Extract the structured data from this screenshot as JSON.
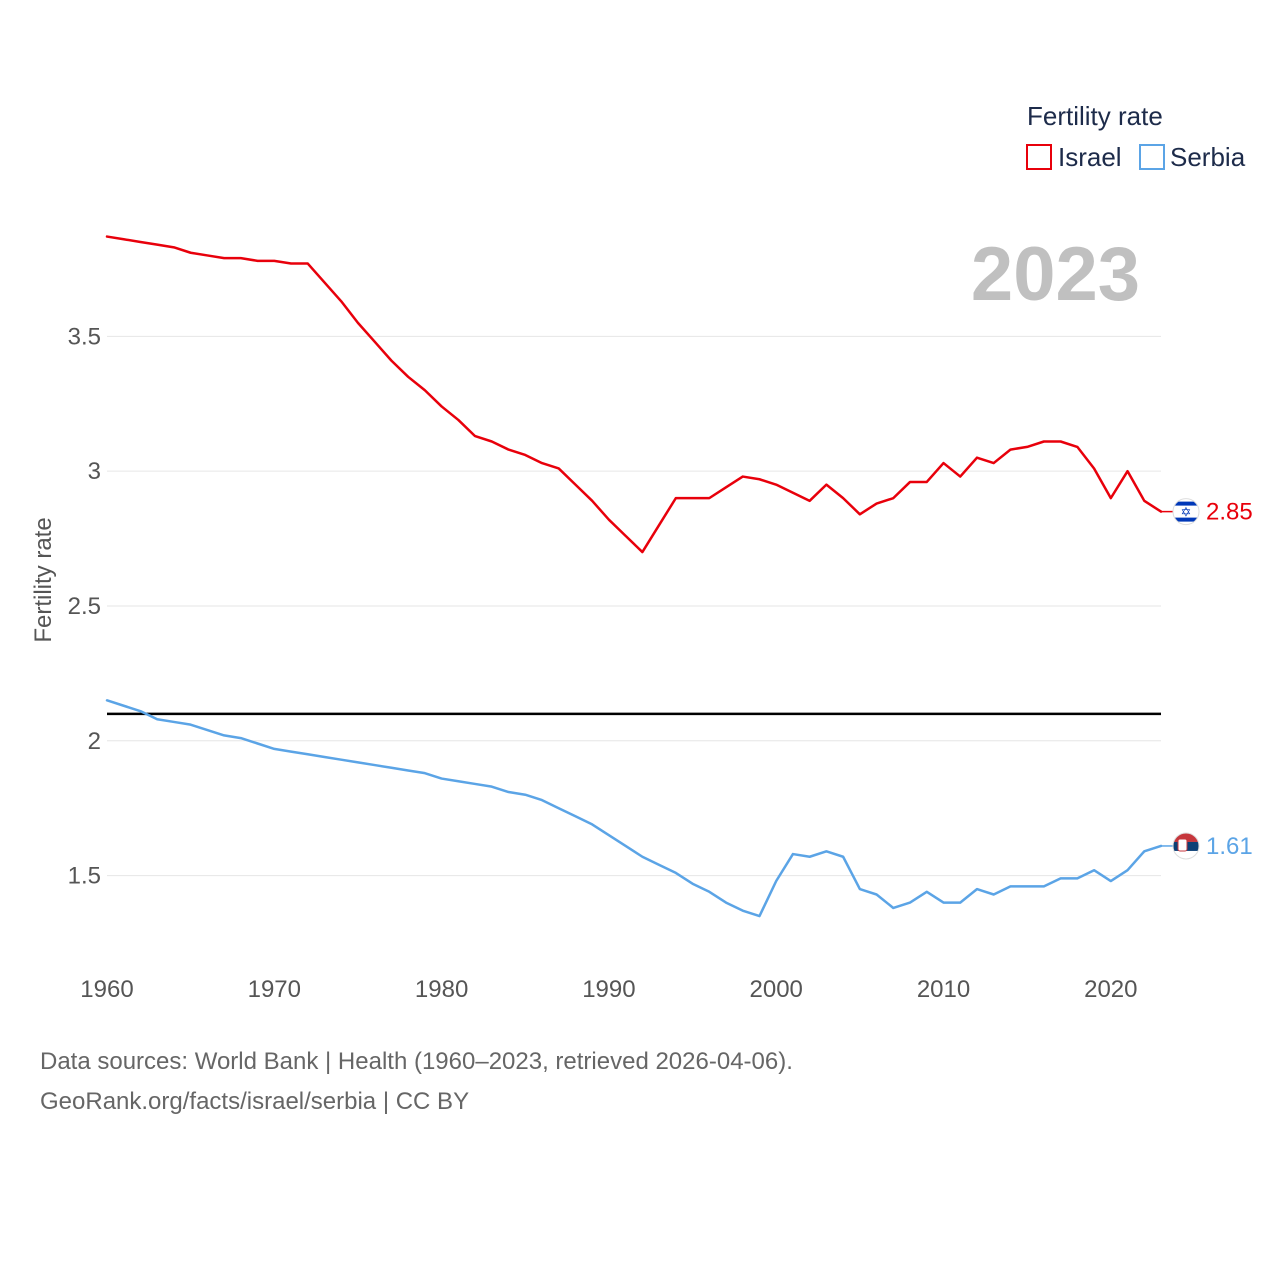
{
  "chart_data": {
    "type": "line",
    "title": "",
    "big_year_label": "2023",
    "ylabel": "Fertility rate",
    "xlabel": "",
    "xlim": [
      1960,
      2023
    ],
    "ylim": [
      1.15,
      3.95
    ],
    "yticks": [
      1.5,
      2,
      2.5,
      3,
      3.5
    ],
    "ytick_labels": [
      "1.5",
      "2",
      "2.5",
      "3",
      "3.5"
    ],
    "xticks": [
      1960,
      1970,
      1980,
      1990,
      2000,
      2010,
      2020
    ],
    "xtick_labels": [
      "1960",
      "1970",
      "1980",
      "1990",
      "2000",
      "2010",
      "2020"
    ],
    "reference_line": {
      "value": 2.1,
      "color": "#000000"
    },
    "legend": {
      "title": "Fertility rate",
      "position": "top-right"
    },
    "x": [
      1960,
      1961,
      1962,
      1963,
      1964,
      1965,
      1966,
      1967,
      1968,
      1969,
      1970,
      1971,
      1972,
      1973,
      1974,
      1975,
      1976,
      1977,
      1978,
      1979,
      1980,
      1981,
      1982,
      1983,
      1984,
      1985,
      1986,
      1987,
      1988,
      1989,
      1990,
      1991,
      1992,
      1993,
      1994,
      1995,
      1996,
      1997,
      1998,
      1999,
      2000,
      2001,
      2002,
      2003,
      2004,
      2005,
      2006,
      2007,
      2008,
      2009,
      2010,
      2011,
      2012,
      2013,
      2014,
      2015,
      2016,
      2017,
      2018,
      2019,
      2020,
      2021,
      2022,
      2023
    ],
    "series": [
      {
        "name": "Israel",
        "color": "#e8000b",
        "end_label": "2.85",
        "values": [
          3.87,
          3.86,
          3.85,
          3.84,
          3.83,
          3.81,
          3.8,
          3.79,
          3.79,
          3.78,
          3.78,
          3.77,
          3.77,
          3.7,
          3.63,
          3.55,
          3.48,
          3.41,
          3.35,
          3.3,
          3.24,
          3.19,
          3.13,
          3.11,
          3.08,
          3.06,
          3.03,
          3.01,
          2.95,
          2.89,
          2.82,
          2.76,
          2.7,
          2.8,
          2.9,
          2.9,
          2.9,
          2.94,
          2.98,
          2.97,
          2.95,
          2.92,
          2.89,
          2.95,
          2.9,
          2.84,
          2.88,
          2.9,
          2.96,
          2.96,
          3.03,
          2.98,
          3.05,
          3.03,
          3.08,
          3.09,
          3.11,
          3.11,
          3.09,
          3.01,
          2.9,
          3.0,
          2.89,
          2.85
        ]
      },
      {
        "name": "Serbia",
        "color": "#5ba4e6",
        "end_label": "1.61",
        "values": [
          2.15,
          2.13,
          2.11,
          2.08,
          2.07,
          2.06,
          2.04,
          2.02,
          2.01,
          1.99,
          1.97,
          1.96,
          1.95,
          1.94,
          1.93,
          1.92,
          1.91,
          1.9,
          1.89,
          1.88,
          1.86,
          1.85,
          1.84,
          1.83,
          1.81,
          1.8,
          1.78,
          1.75,
          1.72,
          1.69,
          1.65,
          1.61,
          1.57,
          1.54,
          1.51,
          1.47,
          1.44,
          1.4,
          1.37,
          1.35,
          1.48,
          1.58,
          1.57,
          1.59,
          1.57,
          1.45,
          1.43,
          1.38,
          1.4,
          1.44,
          1.4,
          1.4,
          1.45,
          1.43,
          1.46,
          1.46,
          1.46,
          1.49,
          1.49,
          1.52,
          1.48,
          1.52,
          1.59,
          1.61
        ]
      }
    ]
  },
  "footer": {
    "source_line": "Data sources: World Bank | Health (1960–2023, retrieved 2026-04-06).",
    "credit_line": "GeoRank.org/facts/israel/serbia | CC BY"
  }
}
